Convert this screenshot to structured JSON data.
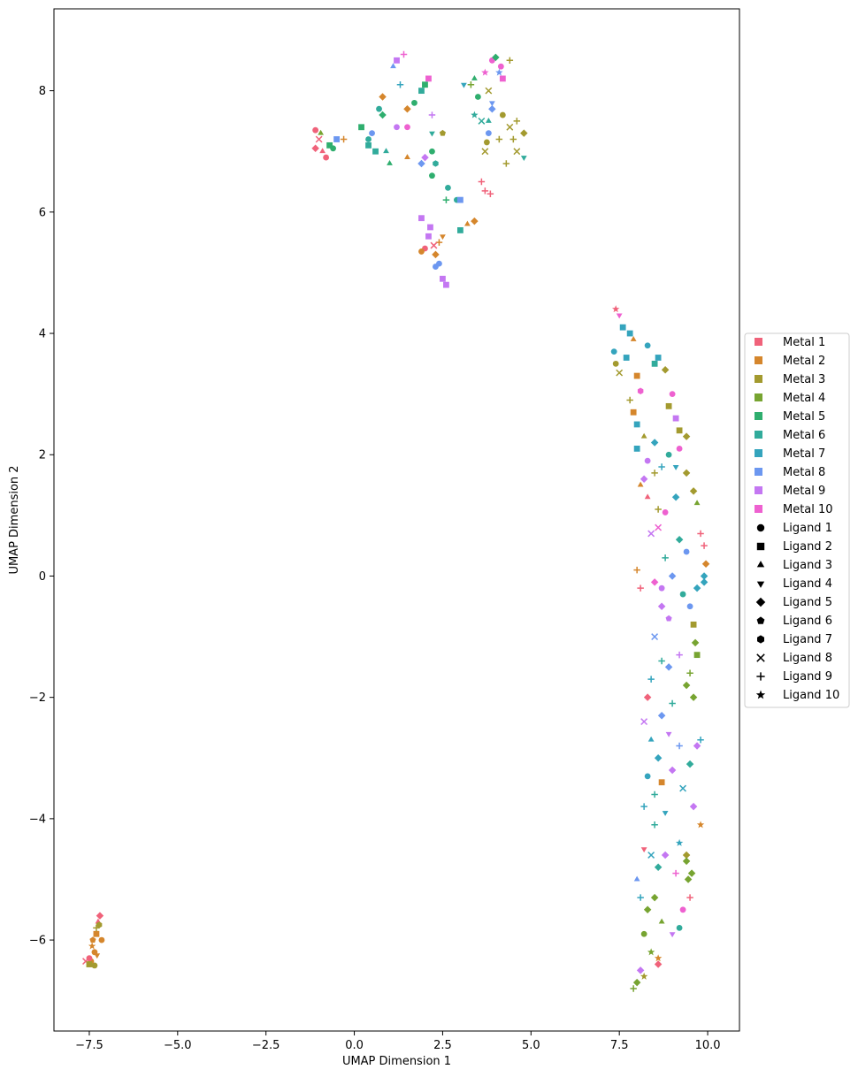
{
  "chart_data": {
    "type": "scatter",
    "title": "",
    "xlabel": "UMAP Dimension 1",
    "ylabel": "UMAP Dimension 2",
    "xlim": [
      -8.5,
      10.9
    ],
    "ylim": [
      -7.5,
      9.35
    ],
    "x_ticks": [
      -7.5,
      -5.0,
      -2.5,
      0.0,
      2.5,
      5.0,
      7.5,
      10.0
    ],
    "x_tick_labels": [
      "−7.5",
      "−5.0",
      "−2.5",
      "0.0",
      "2.5",
      "5.0",
      "7.5",
      "10.0"
    ],
    "y_ticks": [
      -6,
      -4,
      -2,
      0,
      2,
      4,
      6,
      8
    ],
    "y_tick_labels": [
      "−6",
      "−4",
      "−2",
      "0",
      "2",
      "4",
      "6",
      "8"
    ],
    "grid": false,
    "legend_position": "center-right, outside plot",
    "metal_legend": [
      {
        "label": "Metal 1",
        "color": "#f0627a"
      },
      {
        "label": "Metal 2",
        "color": "#d5862c"
      },
      {
        "label": "Metal 3",
        "color": "#a39a2f"
      },
      {
        "label": "Metal 4",
        "color": "#77a431"
      },
      {
        "label": "Metal 5",
        "color": "#2fae6e"
      },
      {
        "label": "Metal 6",
        "color": "#31ab9b"
      },
      {
        "label": "Metal 7",
        "color": "#34a4bd"
      },
      {
        "label": "Metal 8",
        "color": "#6c97f0"
      },
      {
        "label": "Metal 9",
        "color": "#c477f2"
      },
      {
        "label": "Metal 10",
        "color": "#ee61d0"
      }
    ],
    "ligand_legend": [
      {
        "label": "Ligand 1",
        "marker": "circle"
      },
      {
        "label": "Ligand 2",
        "marker": "square"
      },
      {
        "label": "Ligand 3",
        "marker": "triangle-up"
      },
      {
        "label": "Ligand 4",
        "marker": "triangle-down"
      },
      {
        "label": "Ligand 5",
        "marker": "diamond"
      },
      {
        "label": "Ligand 6",
        "marker": "pentagon"
      },
      {
        "label": "Ligand 7",
        "marker": "hexagon"
      },
      {
        "label": "Ligand 8",
        "marker": "x"
      },
      {
        "label": "Ligand 9",
        "marker": "plus"
      },
      {
        "label": "Ligand 10",
        "marker": "star"
      }
    ],
    "points": [
      [
        -7.45,
        -6.35,
        2,
        1
      ],
      [
        -7.5,
        -6.3,
        1,
        1
      ],
      [
        -7.35,
        -6.2,
        2,
        1
      ],
      [
        -7.3,
        -5.9,
        2,
        2
      ],
      [
        -7.25,
        -5.7,
        1,
        3
      ],
      [
        -7.2,
        -5.6,
        1,
        5
      ],
      [
        -7.4,
        -6.0,
        2,
        6
      ],
      [
        -7.35,
        -6.42,
        3,
        1
      ],
      [
        -7.6,
        -6.35,
        1,
        8
      ],
      [
        -7.15,
        -6.0,
        2,
        1
      ],
      [
        -7.3,
        -5.8,
        3,
        9
      ],
      [
        -7.42,
        -6.1,
        2,
        10
      ],
      [
        -7.5,
        -6.4,
        3,
        2
      ],
      [
        -7.28,
        -6.25,
        2,
        4
      ],
      [
        -7.22,
        -5.75,
        3,
        7
      ],
      [
        -1.1,
        7.35,
        1,
        1
      ],
      [
        -0.9,
        7.0,
        1,
        3
      ],
      [
        -0.7,
        7.1,
        5,
        2
      ],
      [
        -0.5,
        7.2,
        8,
        2
      ],
      [
        -1.0,
        7.2,
        1,
        8
      ],
      [
        -0.8,
        6.9,
        1,
        1
      ],
      [
        -0.3,
        7.2,
        2,
        9
      ],
      [
        -1.1,
        7.05,
        1,
        5
      ],
      [
        -0.95,
        7.3,
        4,
        3
      ],
      [
        -0.6,
        7.05,
        5,
        1
      ],
      [
        0.2,
        7.4,
        5,
        2
      ],
      [
        0.4,
        7.2,
        6,
        1
      ],
      [
        0.6,
        7.0,
        6,
        2
      ],
      [
        0.8,
        7.6,
        5,
        5
      ],
      [
        0.5,
        7.3,
        8,
        1
      ],
      [
        0.9,
        7.0,
        6,
        3
      ],
      [
        1.2,
        7.4,
        9,
        1
      ],
      [
        0.7,
        7.7,
        6,
        1
      ],
      [
        0.4,
        7.1,
        6,
        2
      ],
      [
        1.0,
        6.8,
        5,
        3
      ],
      [
        0.8,
        7.9,
        2,
        5
      ],
      [
        1.3,
        8.1,
        7,
        9
      ],
      [
        1.1,
        8.4,
        8,
        3
      ],
      [
        1.4,
        8.6,
        10,
        9
      ],
      [
        1.2,
        8.5,
        9,
        2
      ],
      [
        1.5,
        7.4,
        10,
        1
      ],
      [
        1.7,
        7.8,
        5,
        1
      ],
      [
        1.9,
        8.0,
        6,
        2
      ],
      [
        2.0,
        8.1,
        5,
        2
      ],
      [
        2.1,
        8.2,
        10,
        2
      ],
      [
        1.5,
        7.7,
        2,
        5
      ],
      [
        2.2,
        7.3,
        6,
        4
      ],
      [
        2.2,
        7.0,
        5,
        1
      ],
      [
        2.3,
        6.8,
        6,
        7
      ],
      [
        2.5,
        7.3,
        3,
        6
      ],
      [
        1.5,
        6.9,
        2,
        3
      ],
      [
        1.9,
        6.8,
        8,
        5
      ],
      [
        2.0,
        6.9,
        9,
        5
      ],
      [
        2.2,
        6.6,
        5,
        1
      ],
      [
        2.2,
        7.6,
        9,
        9
      ],
      [
        2.9,
        6.2,
        6,
        1
      ],
      [
        3.0,
        6.2,
        8,
        2
      ],
      [
        2.65,
        6.4,
        6,
        1
      ],
      [
        3.2,
        5.8,
        2,
        3
      ],
      [
        3.4,
        5.85,
        2,
        5
      ],
      [
        3.0,
        5.7,
        6,
        2
      ],
      [
        2.6,
        6.2,
        5,
        9
      ],
      [
        3.1,
        8.1,
        7,
        4
      ],
      [
        3.4,
        8.2,
        5,
        3
      ],
      [
        3.5,
        7.9,
        5,
        1
      ],
      [
        3.3,
        8.1,
        4,
        9
      ],
      [
        3.6,
        7.5,
        6,
        8
      ],
      [
        3.8,
        7.5,
        6,
        3
      ],
      [
        3.7,
        8.3,
        10,
        10
      ],
      [
        3.9,
        8.5,
        10,
        1
      ],
      [
        4.0,
        8.55,
        5,
        5
      ],
      [
        4.1,
        8.3,
        8,
        10
      ],
      [
        4.2,
        8.2,
        10,
        2
      ],
      [
        4.4,
        8.5,
        3,
        9
      ],
      [
        4.15,
        8.4,
        10,
        1
      ],
      [
        3.9,
        7.8,
        8,
        4
      ],
      [
        4.2,
        7.6,
        3,
        1
      ],
      [
        4.4,
        7.4,
        3,
        8
      ],
      [
        4.6,
        7.5,
        3,
        9
      ],
      [
        4.8,
        7.3,
        3,
        5
      ],
      [
        4.6,
        7.0,
        3,
        8
      ],
      [
        4.8,
        6.9,
        6,
        4
      ],
      [
        4.3,
        6.8,
        3,
        9
      ],
      [
        3.9,
        7.7,
        8,
        5
      ],
      [
        3.8,
        7.3,
        8,
        1
      ],
      [
        3.7,
        7.0,
        3,
        8
      ],
      [
        3.4,
        7.6,
        6,
        10
      ],
      [
        3.6,
        6.5,
        1,
        9
      ],
      [
        3.7,
        6.35,
        1,
        9
      ],
      [
        3.85,
        6.3,
        1,
        9
      ],
      [
        3.8,
        8.0,
        3,
        8
      ],
      [
        4.1,
        7.2,
        3,
        9
      ],
      [
        4.5,
        7.2,
        3,
        9
      ],
      [
        3.75,
        7.15,
        3,
        1
      ],
      [
        1.9,
        5.9,
        9,
        2
      ],
      [
        2.1,
        5.6,
        9,
        2
      ],
      [
        2.0,
        5.4,
        1,
        1
      ],
      [
        2.3,
        5.3,
        2,
        5
      ],
      [
        2.4,
        5.5,
        2,
        9
      ],
      [
        2.5,
        5.6,
        2,
        4
      ],
      [
        2.3,
        5.1,
        8,
        1
      ],
      [
        2.5,
        4.9,
        9,
        2
      ],
      [
        2.6,
        4.8,
        9,
        2
      ],
      [
        2.15,
        5.75,
        9,
        2
      ],
      [
        1.9,
        5.35,
        2,
        1
      ],
      [
        2.4,
        5.15,
        8,
        1
      ],
      [
        2.25,
        5.45,
        1,
        8
      ],
      [
        7.4,
        4.4,
        1,
        10
      ],
      [
        7.5,
        4.3,
        10,
        4
      ],
      [
        7.6,
        4.1,
        7,
        2
      ],
      [
        7.8,
        4.0,
        7,
        2
      ],
      [
        7.9,
        3.9,
        2,
        3
      ],
      [
        7.35,
        3.7,
        7,
        1
      ],
      [
        7.4,
        3.5,
        3,
        1
      ],
      [
        7.5,
        3.35,
        3,
        8
      ],
      [
        7.7,
        3.6,
        7,
        2
      ],
      [
        8.0,
        3.3,
        2,
        2
      ],
      [
        8.3,
        3.8,
        7,
        1
      ],
      [
        8.6,
        3.6,
        7,
        2
      ],
      [
        8.5,
        3.5,
        6,
        2
      ],
      [
        8.8,
        3.4,
        3,
        5
      ],
      [
        8.1,
        3.05,
        10,
        7
      ],
      [
        7.8,
        2.9,
        3,
        9
      ],
      [
        7.9,
        2.7,
        2,
        2
      ],
      [
        8.0,
        2.5,
        7,
        2
      ],
      [
        8.2,
        2.3,
        3,
        3
      ],
      [
        8.5,
        2.2,
        7,
        5
      ],
      [
        8.9,
        2.8,
        3,
        2
      ],
      [
        9.1,
        2.6,
        9,
        2
      ],
      [
        9.2,
        2.4,
        3,
        2
      ],
      [
        9.4,
        2.3,
        3,
        5
      ],
      [
        9.0,
        3.0,
        10,
        1
      ],
      [
        8.0,
        2.1,
        7,
        2
      ],
      [
        8.3,
        1.9,
        9,
        1
      ],
      [
        8.5,
        1.7,
        3,
        9
      ],
      [
        8.2,
        1.6,
        9,
        5
      ],
      [
        8.7,
        1.8,
        7,
        9
      ],
      [
        8.9,
        2.0,
        6,
        1
      ],
      [
        9.1,
        1.8,
        7,
        4
      ],
      [
        9.2,
        2.1,
        10,
        1
      ],
      [
        9.4,
        1.7,
        3,
        5
      ],
      [
        9.6,
        1.4,
        3,
        5
      ],
      [
        8.1,
        1.5,
        2,
        3
      ],
      [
        8.3,
        1.3,
        1,
        3
      ],
      [
        8.6,
        1.1,
        3,
        9
      ],
      [
        8.8,
        1.05,
        10,
        1
      ],
      [
        9.1,
        1.3,
        7,
        5
      ],
      [
        9.7,
        1.2,
        4,
        3
      ],
      [
        9.8,
        0.7,
        1,
        9
      ],
      [
        9.9,
        0.5,
        1,
        9
      ],
      [
        9.95,
        0.2,
        2,
        5
      ],
      [
        9.9,
        -0.1,
        7,
        5
      ],
      [
        8.0,
        0.1,
        2,
        9
      ],
      [
        8.1,
        -0.2,
        1,
        9
      ],
      [
        8.4,
        0.7,
        9,
        8
      ],
      [
        8.6,
        0.8,
        10,
        8
      ],
      [
        8.8,
        0.3,
        6,
        9
      ],
      [
        9.2,
        0.6,
        6,
        5
      ],
      [
        9.4,
        0.4,
        8,
        1
      ],
      [
        9.0,
        0.0,
        8,
        5
      ],
      [
        8.7,
        -0.2,
        9,
        1
      ],
      [
        8.5,
        -0.1,
        10,
        5
      ],
      [
        8.7,
        -0.5,
        9,
        5
      ],
      [
        8.9,
        -0.7,
        9,
        6
      ],
      [
        9.3,
        -0.3,
        6,
        1
      ],
      [
        9.5,
        -0.5,
        8,
        1
      ],
      [
        9.7,
        -0.2,
        7,
        5
      ],
      [
        9.9,
        0.0,
        7,
        5
      ],
      [
        9.6,
        -0.8,
        3,
        2
      ],
      [
        9.65,
        -1.1,
        4,
        5
      ],
      [
        9.7,
        -1.3,
        4,
        2
      ],
      [
        9.5,
        -1.6,
        4,
        9
      ],
      [
        8.5,
        -1.0,
        8,
        8
      ],
      [
        8.7,
        -1.4,
        6,
        9
      ],
      [
        8.4,
        -1.7,
        7,
        9
      ],
      [
        8.9,
        -1.5,
        8,
        5
      ],
      [
        9.2,
        -1.3,
        9,
        9
      ],
      [
        9.4,
        -1.8,
        4,
        5
      ],
      [
        9.6,
        -2.0,
        4,
        5
      ],
      [
        9.0,
        -2.1,
        6,
        9
      ],
      [
        8.7,
        -2.3,
        8,
        5
      ],
      [
        8.3,
        -2.0,
        1,
        5
      ],
      [
        8.2,
        -2.4,
        9,
        8
      ],
      [
        8.4,
        -2.7,
        7,
        3
      ],
      [
        8.6,
        -3.0,
        7,
        5
      ],
      [
        8.9,
        -2.6,
        9,
        4
      ],
      [
        9.2,
        -2.8,
        8,
        9
      ],
      [
        9.5,
        -3.1,
        6,
        5
      ],
      [
        9.7,
        -2.8,
        9,
        5
      ],
      [
        9.8,
        -2.7,
        7,
        9
      ],
      [
        8.3,
        -3.3,
        7,
        1
      ],
      [
        8.5,
        -3.6,
        6,
        9
      ],
      [
        8.7,
        -3.4,
        2,
        2
      ],
      [
        9.0,
        -3.2,
        9,
        5
      ],
      [
        9.3,
        -3.5,
        7,
        8
      ],
      [
        9.6,
        -3.8,
        9,
        5
      ],
      [
        9.8,
        -4.1,
        2,
        10
      ],
      [
        8.2,
        -3.8,
        7,
        9
      ],
      [
        8.5,
        -4.1,
        6,
        9
      ],
      [
        8.8,
        -3.9,
        7,
        4
      ],
      [
        9.2,
        -4.4,
        7,
        10
      ],
      [
        9.4,
        -4.6,
        3,
        5
      ],
      [
        8.2,
        -4.5,
        1,
        4
      ],
      [
        8.4,
        -4.6,
        7,
        8
      ],
      [
        8.6,
        -4.8,
        6,
        5
      ],
      [
        8.8,
        -4.6,
        9,
        5
      ],
      [
        9.1,
        -4.9,
        10,
        9
      ],
      [
        9.4,
        -4.7,
        4,
        5
      ],
      [
        9.55,
        -4.9,
        4,
        5
      ],
      [
        9.45,
        -5.0,
        4,
        5
      ],
      [
        8.0,
        -5.0,
        8,
        3
      ],
      [
        8.1,
        -5.3,
        7,
        9
      ],
      [
        8.3,
        -5.5,
        4,
        5
      ],
      [
        8.5,
        -5.3,
        4,
        5
      ],
      [
        8.7,
        -5.7,
        4,
        3
      ],
      [
        9.0,
        -5.9,
        9,
        4
      ],
      [
        9.3,
        -5.5,
        10,
        1
      ],
      [
        8.2,
        -5.9,
        4,
        1
      ],
      [
        8.4,
        -6.2,
        4,
        10
      ],
      [
        8.6,
        -6.4,
        1,
        5
      ],
      [
        8.1,
        -6.5,
        9,
        5
      ],
      [
        8.0,
        -6.7,
        4,
        5
      ],
      [
        7.9,
        -6.8,
        4,
        9
      ],
      [
        8.2,
        -6.6,
        3,
        10
      ],
      [
        8.6,
        -6.3,
        2,
        10
      ],
      [
        9.2,
        -5.8,
        6,
        1
      ],
      [
        9.5,
        -5.3,
        1,
        9
      ]
    ]
  }
}
